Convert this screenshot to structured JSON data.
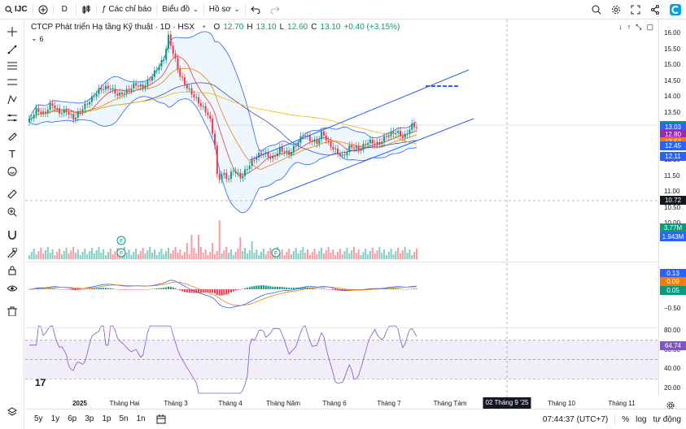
{
  "topbar": {
    "symbol": "IJC",
    "interval": "D",
    "indicators_label": "Các chỉ báo",
    "charts_label": "Biểu đồ",
    "profile_label": "Hồ sơ"
  },
  "legend": {
    "title": "CTCP Phát triển Hạ tầng Kỹ thuật · 1D · HSX",
    "open_label": "O",
    "open": "12.70",
    "high_label": "H",
    "high": "13.10",
    "low_label": "L",
    "low": "12.60",
    "close_label": "C",
    "close": "13.10",
    "change": "+0.40 (+3.15%)",
    "sub_count": "6"
  },
  "price_scale": {
    "ticks": [
      "16.00",
      "15.50",
      "15.00",
      "14.50",
      "14.00",
      "13.50",
      "13.00",
      "12.50",
      "12.00",
      "11.50",
      "11.00",
      "10.50",
      "10.00",
      "9.50"
    ],
    "tags": [
      {
        "label": "13.10",
        "color": "#089981"
      },
      {
        "label": "13.03",
        "color": "#2962ff"
      },
      {
        "label": "12.80",
        "color": "#9c27b0"
      },
      {
        "label": "12.57",
        "color": "#f57c00"
      },
      {
        "label": "12.45",
        "color": "#2962ff"
      },
      {
        "label": "12.11",
        "color": "#2962ff"
      },
      {
        "label": "10.72",
        "color": "#131722"
      }
    ],
    "volume_tags": [
      {
        "label": "3.77M",
        "color": "#089981"
      },
      {
        "label": "1.943M",
        "color": "#2962ff"
      }
    ],
    "macd_ticks": [
      "−0.50"
    ],
    "macd_tags": [
      {
        "label": "0.13",
        "color": "#2962ff"
      },
      {
        "label": "0.09",
        "color": "#f57c00"
      },
      {
        "label": "0.05",
        "color": "#089981"
      }
    ],
    "rsi_ticks": [
      "80.00",
      "60.00",
      "40.00",
      "20.00"
    ],
    "rsi_tag": {
      "label": "64.74",
      "color": "#7e57c2"
    }
  },
  "time_axis": {
    "ticks": [
      "2025",
      "Tháng Hai",
      "Tháng 3",
      "Tháng 4",
      "Tháng Năm",
      "Tháng 6",
      "Tháng 7",
      "Tháng Tám",
      "Tháng 10",
      "Tháng 11"
    ],
    "current": "02 Tháng 9 '25"
  },
  "bottombar": {
    "ranges": [
      "5y",
      "1y",
      "6p",
      "3p",
      "1p",
      "5n",
      "1n"
    ],
    "clock": "07:44:37 (UTC+7)",
    "percent": "%",
    "log": "log",
    "auto": "tự động"
  },
  "colors": {
    "up": "#089981",
    "down": "#f23645",
    "bb": "#2962ff",
    "ma_orange": "#f57c00",
    "ma_red": "#e53935",
    "ma_yellow": "#f5b800",
    "rsi": "#7e57c2"
  }
}
